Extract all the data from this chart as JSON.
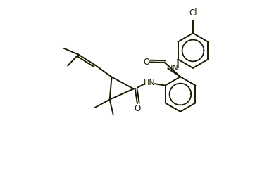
{
  "background_color": "#ffffff",
  "line_color": "#1a1a00",
  "figsize": [
    3.62,
    2.76
  ],
  "dpi": 100,
  "lw": 1.4,
  "ring_r": 0.62,
  "xlim": [
    0,
    9.05
  ],
  "ylim": [
    0,
    6.9
  ]
}
